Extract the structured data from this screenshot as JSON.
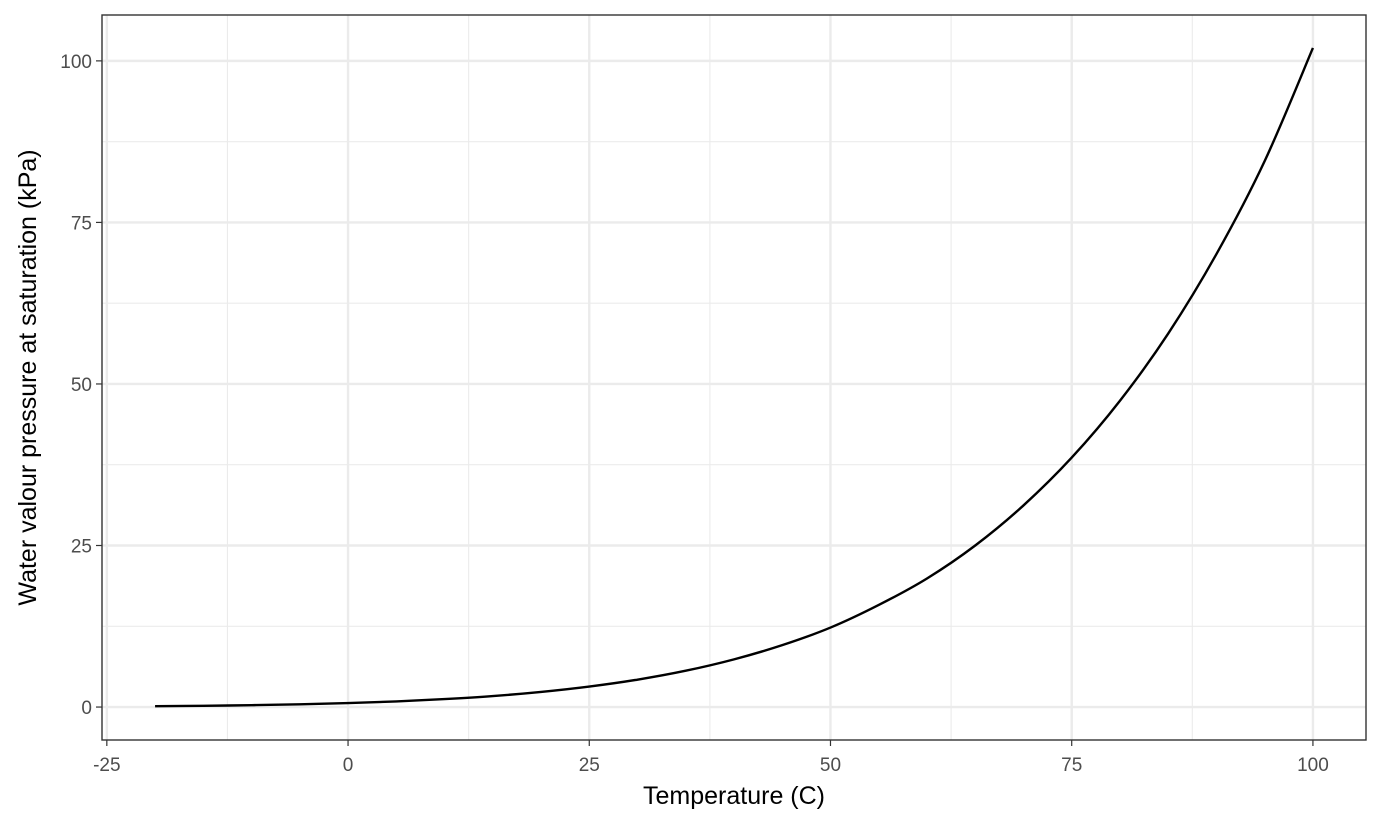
{
  "chart_data": {
    "type": "line",
    "title": "",
    "xlabel": "Temperature (C)",
    "ylabel": "Water valour pressure at saturation (kPa)",
    "xlim": [
      -25.5,
      105.5
    ],
    "ylim": [
      -5.1,
      107.1
    ],
    "x_ticks": [
      -25,
      0,
      25,
      50,
      75,
      100
    ],
    "x_tick_labels": [
      "-25",
      "0",
      "25",
      "50",
      "75",
      "100"
    ],
    "y_ticks": [
      0,
      25,
      50,
      75,
      100
    ],
    "y_tick_labels": [
      "0",
      "25",
      "50",
      "75",
      "100"
    ],
    "grid": true,
    "legend": "none",
    "line_color": "#000000",
    "series": [
      {
        "x": [
          -20,
          -15,
          -10,
          -5,
          0,
          5,
          10,
          15,
          20,
          25,
          30,
          35,
          40,
          45,
          50,
          55,
          60,
          65,
          70,
          75,
          80,
          85,
          90,
          95,
          100
        ],
        "values": [
          0.13,
          0.19,
          0.29,
          0.42,
          0.61,
          0.87,
          1.23,
          1.7,
          2.34,
          3.17,
          4.24,
          5.62,
          7.38,
          9.58,
          12.3,
          15.8,
          19.9,
          25.0,
          31.2,
          38.6,
          47.4,
          57.8,
          70.1,
          84.5,
          102.0
        ]
      }
    ]
  }
}
